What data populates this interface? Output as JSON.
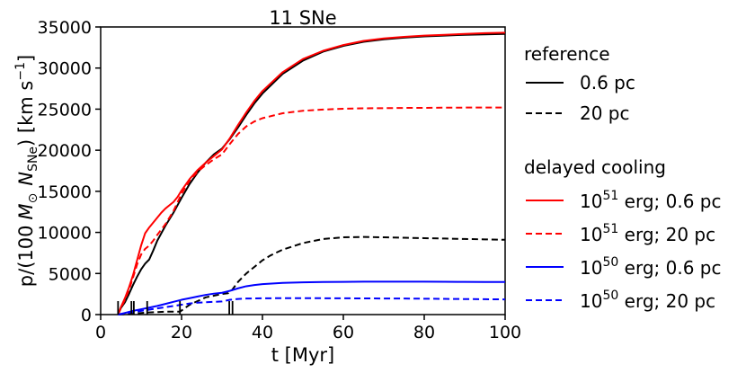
{
  "chart_data": {
    "type": "line",
    "title": "11 SNe",
    "xlabel": "t [Myr]",
    "ylabel_prefix": "p/(100",
    "ylabel_msun": "M",
    "ylabel_sun_sub": "⊙",
    "ylabel_n": "N",
    "ylabel_n_sub": "SNe",
    "ylabel_suffix": ") [km s",
    "ylabel_exp": "−1",
    "ylabel_close": "]",
    "xlim": [
      0,
      100
    ],
    "ylim": [
      0,
      35000
    ],
    "xticks": [
      "0",
      "20",
      "40",
      "60",
      "80",
      "100"
    ],
    "yticks": [
      "0",
      "5000",
      "10000",
      "15000",
      "20000",
      "25000",
      "30000",
      "35000"
    ],
    "sn_times": [
      4.3,
      7.6,
      8.2,
      11.5,
      19.6,
      31.8,
      32.6
    ],
    "legend": {
      "group1": "reference",
      "group2": "delayed cooling",
      "entries": [
        {
          "label": "0.6 pc"
        },
        {
          "label": "20 pc"
        },
        {
          "base": "10",
          "exp": "51",
          "rest": " erg; 0.6 pc"
        },
        {
          "base": "10",
          "exp": "51",
          "rest": " erg; 20 pc"
        },
        {
          "base": "10",
          "exp": "50",
          "rest": " erg; 0.6 pc"
        },
        {
          "base": "10",
          "exp": "50",
          "rest": " erg; 20 pc"
        }
      ]
    },
    "series": [
      {
        "name": "reference 0.6 pc",
        "color": "#000000",
        "dash": false,
        "x": [
          4.3,
          5,
          6,
          7,
          8,
          9,
          10,
          11,
          12,
          13,
          14,
          16,
          18,
          20,
          22,
          24,
          26,
          28,
          30,
          32,
          34,
          36,
          38,
          40,
          45,
          50,
          55,
          60,
          65,
          70,
          75,
          80,
          85,
          90,
          95,
          100
        ],
        "y": [
          0,
          800,
          1500,
          2500,
          3600,
          4600,
          5500,
          6200,
          6700,
          7800,
          9000,
          10800,
          12400,
          14200,
          15900,
          17300,
          18500,
          19500,
          20200,
          21400,
          22800,
          24300,
          25700,
          26900,
          29300,
          30900,
          32000,
          32700,
          33200,
          33500,
          33700,
          33850,
          33950,
          34050,
          34100,
          34150
        ]
      },
      {
        "name": "reference 20 pc",
        "color": "#000000",
        "dash": true,
        "x": [
          4.3,
          8,
          11.5,
          16,
          19.6,
          22,
          26,
          30,
          31.5,
          32.5,
          34,
          36,
          38,
          40,
          42,
          45,
          50,
          55,
          60,
          65,
          70,
          75,
          80,
          85,
          90,
          95,
          100
        ],
        "y": [
          0,
          100,
          250,
          350,
          350,
          1200,
          2100,
          2500,
          2600,
          3000,
          4000,
          5000,
          5800,
          6600,
          7200,
          7900,
          8700,
          9200,
          9400,
          9450,
          9400,
          9350,
          9300,
          9250,
          9200,
          9150,
          9100
        ]
      },
      {
        "name": "10^51 erg; 0.6 pc",
        "color": "#ff0000",
        "dash": false,
        "x": [
          4.3,
          5,
          6,
          7,
          8,
          9,
          10,
          11,
          12,
          13,
          14,
          15,
          16,
          17,
          18,
          19,
          20,
          22,
          24,
          26,
          28,
          30,
          32,
          34,
          36,
          38,
          40,
          45,
          50,
          55,
          60,
          65,
          70,
          75,
          80,
          85,
          90,
          95,
          100
        ],
        "y": [
          0,
          900,
          2000,
          3300,
          4800,
          6600,
          8400,
          9900,
          10600,
          11200,
          11800,
          12400,
          12900,
          13300,
          13700,
          14300,
          15100,
          16500,
          17600,
          18500,
          19300,
          20100,
          21500,
          23100,
          24600,
          26000,
          27200,
          29500,
          31100,
          32100,
          32800,
          33300,
          33600,
          33800,
          33950,
          34050,
          34150,
          34250,
          34300
        ]
      },
      {
        "name": "10^51 erg; 20 pc",
        "color": "#ff0000",
        "dash": true,
        "x": [
          4.3,
          5,
          6,
          7,
          8,
          9,
          10,
          11,
          12,
          13,
          14,
          16,
          18,
          20,
          22,
          24,
          26,
          28,
          30,
          32,
          34,
          36,
          38,
          40,
          45,
          50,
          55,
          60,
          65,
          70,
          75,
          80,
          85,
          90,
          95,
          100
        ],
        "y": [
          0,
          800,
          1800,
          3000,
          4500,
          6100,
          7300,
          8000,
          8400,
          9000,
          9700,
          11000,
          12600,
          14700,
          16300,
          17400,
          18200,
          18900,
          19500,
          20800,
          22000,
          22900,
          23500,
          23900,
          24500,
          24800,
          24950,
          25050,
          25100,
          25120,
          25150,
          25160,
          25180,
          25190,
          25200,
          25200
        ]
      },
      {
        "name": "10^50 erg; 0.6 pc",
        "color": "#0000ff",
        "dash": false,
        "x": [
          4.3,
          6,
          8,
          10,
          12,
          14,
          16,
          18,
          20,
          22,
          24,
          26,
          28,
          30,
          32,
          34,
          36,
          38,
          40,
          45,
          50,
          55,
          60,
          65,
          70,
          75,
          80,
          85,
          90,
          95,
          100
        ],
        "y": [
          0,
          200,
          450,
          650,
          850,
          1050,
          1300,
          1550,
          1800,
          2000,
          2200,
          2400,
          2550,
          2650,
          2900,
          3200,
          3450,
          3600,
          3700,
          3850,
          3920,
          3960,
          3980,
          4000,
          4000,
          4000,
          4000,
          3990,
          3980,
          3970,
          3960
        ]
      },
      {
        "name": "10^50 erg; 20 pc",
        "color": "#0000ff",
        "dash": true,
        "x": [
          4.3,
          6,
          8,
          10,
          12,
          14,
          16,
          18,
          20,
          22,
          24,
          26,
          28,
          30,
          32,
          34,
          36,
          40,
          45,
          50,
          55,
          60,
          65,
          70,
          75,
          80,
          85,
          90,
          95,
          100
        ],
        "y": [
          0,
          150,
          300,
          450,
          600,
          750,
          900,
          1050,
          1200,
          1350,
          1450,
          1500,
          1550,
          1600,
          1800,
          1900,
          1950,
          1980,
          2000,
          2000,
          1990,
          1980,
          1970,
          1960,
          1950,
          1930,
          1910,
          1890,
          1870,
          1850
        ]
      }
    ]
  }
}
